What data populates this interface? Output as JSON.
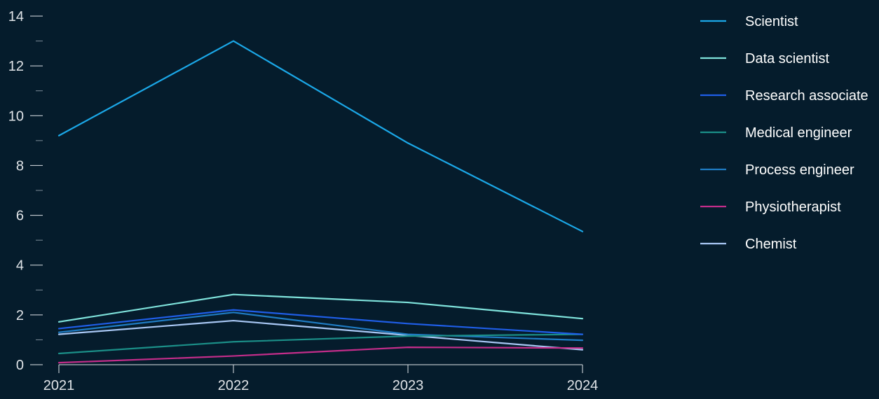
{
  "chart_data": {
    "type": "line",
    "x": [
      "2021",
      "2022",
      "2023",
      "2024"
    ],
    "ylim": [
      0,
      14
    ],
    "y_ticks": [
      0,
      2,
      4,
      6,
      8,
      10,
      12,
      14
    ],
    "legend_position": "right",
    "series": [
      {
        "name": "Scientist",
        "color": "#1ba8e8",
        "values": [
          9.2,
          13.0,
          8.9,
          5.35
        ]
      },
      {
        "name": "Data scientist",
        "color": "#7fe3dc",
        "values": [
          1.72,
          2.82,
          2.5,
          1.85
        ]
      },
      {
        "name": "Research associate",
        "color": "#1f5ee8",
        "values": [
          1.45,
          2.2,
          1.65,
          1.22
        ]
      },
      {
        "name": "Medical engineer",
        "color": "#1b8f88",
        "values": [
          0.45,
          0.92,
          1.15,
          1.22
        ]
      },
      {
        "name": "Process engineer",
        "color": "#1f7cc4",
        "values": [
          1.3,
          2.1,
          1.22,
          0.98
        ]
      },
      {
        "name": "Physiotherapist",
        "color": "#c42d8a",
        "values": [
          0.08,
          0.35,
          0.7,
          0.67
        ]
      },
      {
        "name": "Chemist",
        "color": "#a9c8f5",
        "values": [
          1.22,
          1.77,
          1.18,
          0.6
        ]
      }
    ]
  }
}
